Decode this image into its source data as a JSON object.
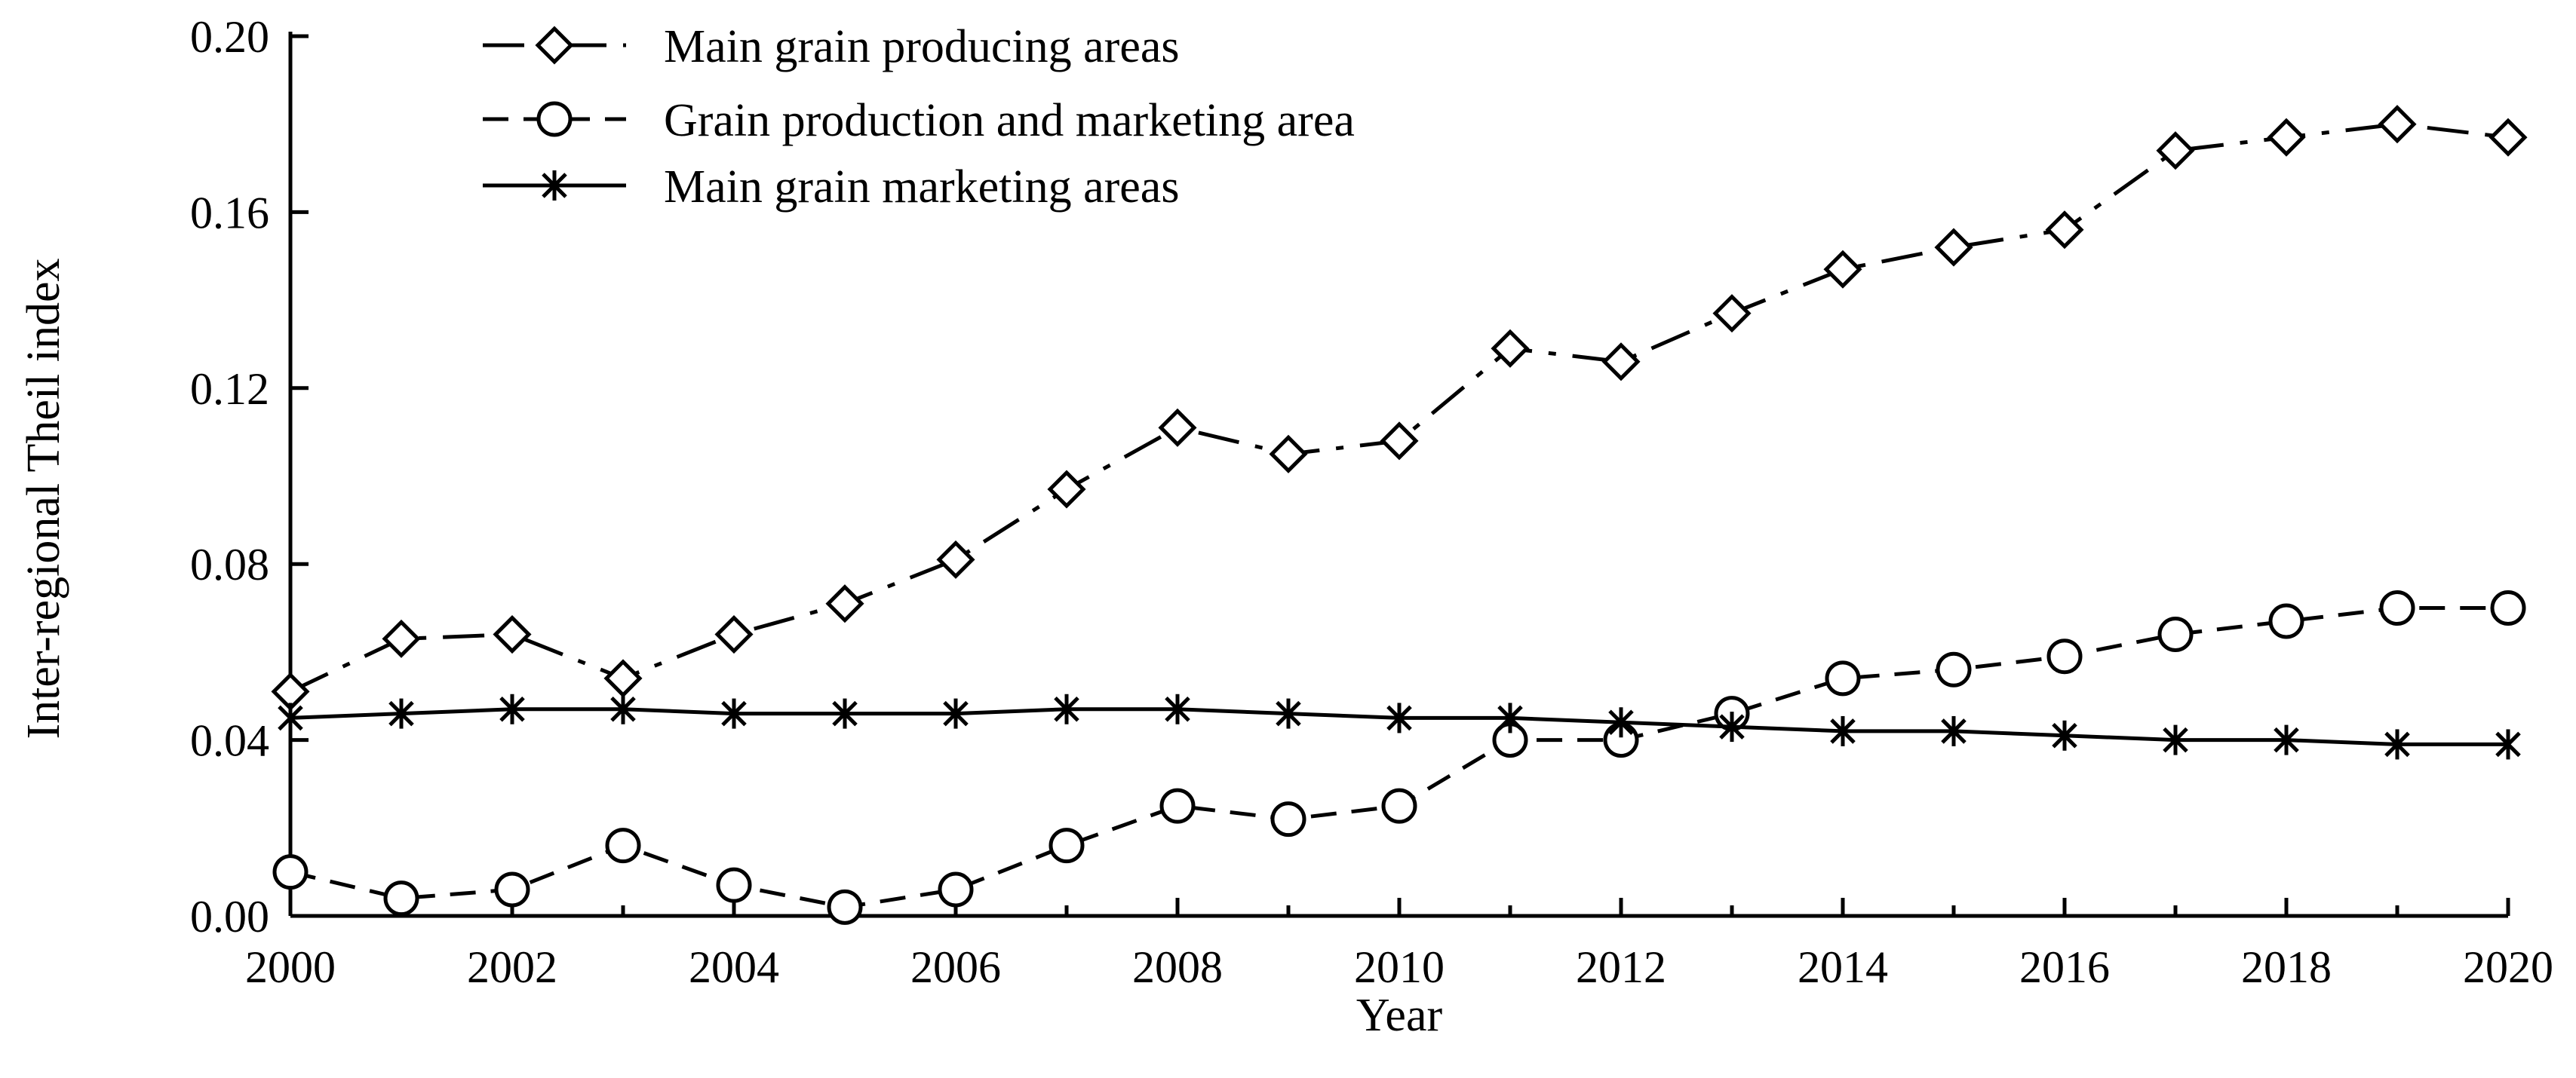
{
  "chart_data": {
    "type": "line",
    "title": "",
    "xlabel": "Year",
    "ylabel": "Inter-regional Theil index",
    "xlim": [
      2000,
      2020
    ],
    "ylim": [
      0.0,
      0.2
    ],
    "x": [
      2000,
      2001,
      2002,
      2003,
      2004,
      2005,
      2006,
      2007,
      2008,
      2009,
      2010,
      2011,
      2012,
      2013,
      2014,
      2015,
      2016,
      2017,
      2018,
      2019,
      2020
    ],
    "x_ticks": [
      "2000",
      "2002",
      "2004",
      "2006",
      "2008",
      "2010",
      "2012",
      "2014",
      "2016",
      "2018",
      "2020"
    ],
    "y_ticks": [
      "0.00",
      "0.04",
      "0.08",
      "0.12",
      "0.16",
      "0.20"
    ],
    "grid": false,
    "legend_position": "top-left",
    "series": [
      {
        "name": "Main grain producing areas",
        "marker": "diamond",
        "line_style": "dash-dot",
        "values": [
          0.051,
          0.063,
          0.064,
          0.054,
          0.064,
          0.071,
          0.081,
          0.097,
          0.111,
          0.105,
          0.108,
          0.129,
          0.126,
          0.137,
          0.147,
          0.152,
          0.156,
          0.174,
          0.177,
          0.18,
          0.177
        ]
      },
      {
        "name": "Grain production and marketing area",
        "marker": "circle",
        "line_style": "dashed",
        "values": [
          0.01,
          0.004,
          0.006,
          0.016,
          0.007,
          0.002,
          0.006,
          0.016,
          0.025,
          0.022,
          0.025,
          0.04,
          0.04,
          0.046,
          0.054,
          0.056,
          0.059,
          0.064,
          0.067,
          0.07,
          0.07
        ]
      },
      {
        "name": "Main grain marketing areas",
        "marker": "asterisk",
        "line_style": "solid",
        "values": [
          0.045,
          0.046,
          0.047,
          0.047,
          0.046,
          0.046,
          0.046,
          0.047,
          0.047,
          0.046,
          0.045,
          0.045,
          0.044,
          0.043,
          0.042,
          0.042,
          0.041,
          0.04,
          0.04,
          0.039,
          0.039
        ]
      }
    ]
  }
}
